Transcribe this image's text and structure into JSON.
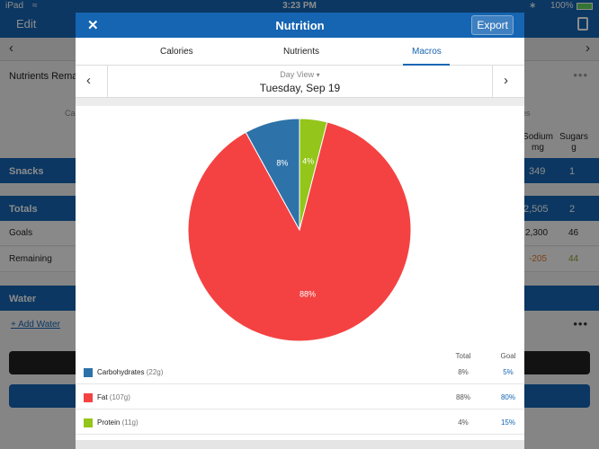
{
  "status_bar": {
    "device": "iPad",
    "time": "3:23 PM",
    "battery": "100%"
  },
  "background": {
    "edit_label": "Edit",
    "nutrients_remaining": "Nutrients Remai",
    "calories_fragment": "Ca",
    "es_fragment": "es",
    "col_sodium": "Sodium",
    "col_sodium_unit": "mg",
    "col_sugars": "Sugars",
    "col_sugars_unit": "g",
    "snacks": {
      "label": "Snacks",
      "sodium": "349",
      "sugars": "1"
    },
    "totals": {
      "label": "Totals",
      "sodium": "2,505",
      "sugars": "2"
    },
    "goals": {
      "label": "Goals",
      "sodium": "2,300",
      "sugars": "46"
    },
    "remaining": {
      "label": "Remaining",
      "sodium": "-205",
      "sugars": "44"
    },
    "water_label": "Water",
    "add_water": "+ Add Water"
  },
  "modal": {
    "title": "Nutrition",
    "export_label": "Export",
    "tabs": [
      {
        "label": "Calories",
        "active": false
      },
      {
        "label": "Nutrients",
        "active": false
      },
      {
        "label": "Macros",
        "active": true
      }
    ],
    "day_view_label": "Day View",
    "date": "Tuesday, Sep 19",
    "legend_headers": {
      "total": "Total",
      "goal": "Goal"
    }
  },
  "chart_data": {
    "type": "pie",
    "slices": [
      {
        "name": "Carbohydrates",
        "amount": "(22g)",
        "percent": 8,
        "label": "8%",
        "total": "8%",
        "goal": "5%",
        "color": "#2d72a8"
      },
      {
        "name": "Fat",
        "amount": "(107g)",
        "percent": 88,
        "label": "88%",
        "total": "88%",
        "goal": "80%",
        "color": "#f44242"
      },
      {
        "name": "Protein",
        "amount": "(11g)",
        "percent": 4,
        "label": "4%",
        "total": "4%",
        "goal": "15%",
        "color": "#94c51b"
      }
    ]
  },
  "colors": {
    "accent": "#1565b2",
    "remaining_negative": "#e07a2f",
    "remaining_positive": "#8c9a2a"
  }
}
